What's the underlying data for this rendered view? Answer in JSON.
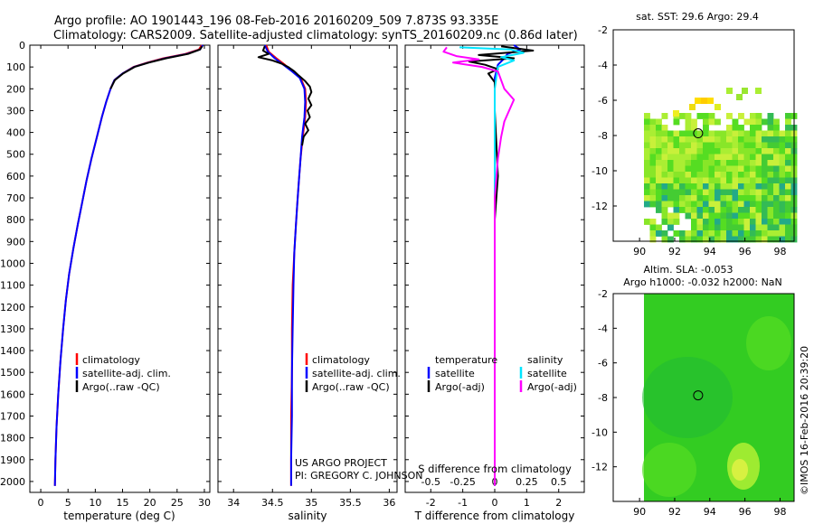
{
  "header": {
    "title_line1": "Argo profile: AO 1901443_196 08-Feb-2016 20160209_509 7.873S 93.335E",
    "title_line2": "Climatology: CARS2009. Satellite-adjusted climatology: synTS_20160209.nc (0.86d later)"
  },
  "colors": {
    "climatology": "#ff0000",
    "satellite": "#0000ff",
    "argo": "#000000",
    "salinity_satellite": "#00e5ff",
    "salinity_argo": "#ff00ff"
  },
  "chart_data": [
    {
      "type": "line",
      "panel": "temperature",
      "xlabel": "temperature (deg C)",
      "ylabel": "",
      "xlim": [
        -2,
        31
      ],
      "ylim": [
        2050,
        0
      ],
      "xticks": [
        0,
        5,
        10,
        15,
        20,
        25,
        30
      ],
      "xtick_labels": [
        "0",
        "5",
        "10",
        "15",
        "20",
        "25",
        "30"
      ],
      "yticks": [
        0,
        100,
        200,
        300,
        400,
        500,
        600,
        700,
        800,
        900,
        1000,
        1100,
        1200,
        1300,
        1400,
        1500,
        1600,
        1700,
        1800,
        1900,
        2000
      ],
      "ytick_labels": [
        "0",
        "100",
        "200",
        "300",
        "400",
        "500",
        "600",
        "700",
        "800",
        "900",
        "1000",
        "1100",
        "1200",
        "1300",
        "1400",
        "1500",
        "1600",
        "1700",
        "1800",
        "1900",
        "2000"
      ],
      "legend": [
        "climatology",
        "satellite-adj. clim.",
        "Argo(..raw -QC)"
      ],
      "series": [
        {
          "name": "climatology",
          "color": "#ff0000",
          "points": [
            [
              29.5,
              0
            ],
            [
              29.0,
              20
            ],
            [
              26.5,
              40
            ],
            [
              22.5,
              60
            ],
            [
              19.5,
              80
            ],
            [
              17.0,
              100
            ],
            [
              15.0,
              130
            ],
            [
              13.5,
              160
            ],
            [
              12.8,
              200
            ],
            [
              12.0,
              260
            ],
            [
              11.2,
              330
            ],
            [
              10.3,
              420
            ],
            [
              9.3,
              520
            ],
            [
              8.4,
              620
            ],
            [
              7.6,
              720
            ],
            [
              6.8,
              820
            ],
            [
              6.0,
              930
            ],
            [
              5.2,
              1050
            ],
            [
              4.6,
              1170
            ],
            [
              4.1,
              1300
            ],
            [
              3.6,
              1450
            ],
            [
              3.2,
              1600
            ],
            [
              2.9,
              1750
            ],
            [
              2.7,
              1900
            ],
            [
              2.6,
              2020
            ]
          ]
        },
        {
          "name": "satellite-adj. clim.",
          "color": "#0000ff",
          "points": [
            [
              29.7,
              0
            ],
            [
              29.2,
              20
            ],
            [
              26.8,
              40
            ],
            [
              22.8,
              60
            ],
            [
              19.7,
              80
            ],
            [
              17.1,
              100
            ],
            [
              15.0,
              130
            ],
            [
              13.5,
              160
            ],
            [
              12.8,
              200
            ],
            [
              12.0,
              260
            ],
            [
              11.2,
              330
            ],
            [
              10.3,
              420
            ],
            [
              9.3,
              520
            ],
            [
              8.4,
              620
            ],
            [
              7.6,
              720
            ],
            [
              6.8,
              820
            ],
            [
              6.0,
              930
            ],
            [
              5.2,
              1050
            ],
            [
              4.6,
              1170
            ],
            [
              4.1,
              1300
            ],
            [
              3.6,
              1450
            ],
            [
              3.2,
              1600
            ],
            [
              2.9,
              1750
            ],
            [
              2.7,
              1900
            ],
            [
              2.6,
              2020
            ]
          ]
        },
        {
          "name": "Argo(..raw -QC)",
          "color": "#000000",
          "points": [
            [
              29.6,
              5
            ],
            [
              29.2,
              20
            ],
            [
              27.0,
              40
            ],
            [
              23.0,
              60
            ],
            [
              19.8,
              80
            ],
            [
              17.2,
              100
            ],
            [
              15.1,
              130
            ],
            [
              13.6,
              160
            ],
            [
              12.8,
              200
            ]
          ]
        }
      ]
    },
    {
      "type": "line",
      "panel": "salinity",
      "xlabel": "salinity",
      "ylabel": "",
      "xlim": [
        33.8,
        36.1
      ],
      "ylim": [
        2050,
        0
      ],
      "xticks": [
        34,
        34.5,
        35,
        35.5,
        36
      ],
      "xtick_labels": [
        "34",
        "34.5",
        "35",
        "35.5",
        "36"
      ],
      "legend": [
        "climatology",
        "satellite-adj. clim.",
        "Argo(..raw -QC)"
      ],
      "annotations": [
        "US ARGO PROJECT",
        "PI: GREGORY C. JOHNSON"
      ],
      "series": [
        {
          "name": "climatology",
          "color": "#ff0000",
          "points": [
            [
              34.42,
              0
            ],
            [
              34.45,
              30
            ],
            [
              34.55,
              60
            ],
            [
              34.66,
              90
            ],
            [
              34.76,
              120
            ],
            [
              34.86,
              150
            ],
            [
              34.92,
              200
            ],
            [
              34.93,
              260
            ],
            [
              34.92,
              330
            ],
            [
              34.89,
              420
            ],
            [
              34.86,
              520
            ],
            [
              34.84,
              620
            ],
            [
              34.82,
              720
            ],
            [
              34.8,
              830
            ],
            [
              34.78,
              950
            ],
            [
              34.76,
              1100
            ],
            [
              34.75,
              1300
            ],
            [
              34.75,
              1500
            ],
            [
              34.74,
              1700
            ],
            [
              34.74,
              1900
            ],
            [
              34.74,
              2020
            ]
          ]
        },
        {
          "name": "satellite-adj. clim.",
          "color": "#0000ff",
          "points": [
            [
              34.4,
              0
            ],
            [
              34.44,
              30
            ],
            [
              34.53,
              60
            ],
            [
              34.64,
              90
            ],
            [
              34.75,
              120
            ],
            [
              34.85,
              150
            ],
            [
              34.91,
              200
            ],
            [
              34.92,
              260
            ],
            [
              34.91,
              330
            ],
            [
              34.88,
              420
            ],
            [
              34.86,
              520
            ],
            [
              34.84,
              620
            ],
            [
              34.82,
              720
            ],
            [
              34.8,
              830
            ],
            [
              34.78,
              950
            ],
            [
              34.77,
              1100
            ],
            [
              34.76,
              1300
            ],
            [
              34.75,
              1500
            ],
            [
              34.75,
              1700
            ],
            [
              34.74,
              1900
            ],
            [
              34.74,
              2020
            ]
          ]
        },
        {
          "name": "Argo(..raw -QC)",
          "color": "#000000",
          "points": [
            [
              34.4,
              5
            ],
            [
              34.38,
              25
            ],
            [
              34.45,
              40
            ],
            [
              34.32,
              55
            ],
            [
              34.5,
              70
            ],
            [
              34.62,
              85
            ],
            [
              34.7,
              100
            ],
            [
              34.78,
              120
            ],
            [
              34.84,
              140
            ],
            [
              34.92,
              165
            ],
            [
              34.98,
              190
            ],
            [
              35.0,
              215
            ],
            [
              34.96,
              245
            ],
            [
              35.0,
              275
            ],
            [
              34.95,
              300
            ],
            [
              34.98,
              330
            ],
            [
              34.92,
              360
            ],
            [
              34.96,
              390
            ],
            [
              34.9,
              420
            ],
            [
              34.88,
              460
            ]
          ]
        }
      ]
    },
    {
      "type": "line",
      "panel": "differences",
      "xlabel": "T difference from climatology",
      "xlabel_top": "S difference from climatology",
      "xlim": [
        -2.8,
        2.8
      ],
      "ylim": [
        2050,
        0
      ],
      "xticks": [
        -2,
        -1,
        0,
        1,
        2
      ],
      "xtick_labels": [
        "-2",
        "-1",
        "0",
        "1",
        "2"
      ],
      "s_ticks": [
        -0.5,
        -0.25,
        0,
        0.25,
        0.5
      ],
      "s_tick_labels": [
        "-0.5",
        "-0.25",
        "0",
        "0.25",
        "0.5"
      ],
      "legend_headers": [
        "temperature",
        "salinity"
      ],
      "legend": [
        "satellite",
        "Argo(-adj)",
        "satellite",
        "Argo(-adj)"
      ],
      "series": [
        {
          "name": "temperature satellite",
          "color": "#0000ff",
          "points": [
            [
              0.6,
              0
            ],
            [
              0.8,
              20
            ],
            [
              0.4,
              40
            ],
            [
              0.3,
              60
            ],
            [
              0.1,
              90
            ],
            [
              0.0,
              150
            ],
            [
              0.0,
              400
            ],
            [
              0.0,
              2020
            ]
          ]
        },
        {
          "name": "temperature Argo(-adj)",
          "color": "#000000",
          "points": [
            [
              0.2,
              5
            ],
            [
              1.2,
              25
            ],
            [
              -0.5,
              45
            ],
            [
              0.6,
              60
            ],
            [
              -0.8,
              75
            ],
            [
              -0.3,
              90
            ],
            [
              0.1,
              110
            ],
            [
              -0.2,
              130
            ],
            [
              0.0,
              170
            ],
            [
              0.0,
              300
            ],
            [
              0.1,
              600
            ],
            [
              0.0,
              800
            ],
            [
              0.0,
              1100
            ],
            [
              0.0,
              2020
            ]
          ]
        },
        {
          "name": "salinity satellite",
          "color": "#00e5ff",
          "points": [
            [
              -1.1,
              10
            ],
            [
              0.5,
              20
            ],
            [
              0.9,
              35
            ],
            [
              0.2,
              55
            ],
            [
              0.6,
              70
            ],
            [
              0.1,
              100
            ],
            [
              0.0,
              200
            ],
            [
              0.0,
              2020
            ]
          ]
        },
        {
          "name": "salinity Argo(-adj)",
          "color": "#ff00ff",
          "points": [
            [
              -1.5,
              10
            ],
            [
              -1.6,
              30
            ],
            [
              -1.2,
              50
            ],
            [
              -0.5,
              65
            ],
            [
              -1.3,
              80
            ],
            [
              -0.4,
              100
            ],
            [
              0.1,
              120
            ],
            [
              0.3,
              200
            ],
            [
              0.6,
              250
            ],
            [
              0.3,
              350
            ],
            [
              0.2,
              420
            ],
            [
              0.1,
              520
            ],
            [
              0.0,
              700
            ],
            [
              0.0,
              1300
            ],
            [
              0.0,
              2020
            ]
          ]
        }
      ]
    },
    {
      "type": "heatmap",
      "panel": "sst-map",
      "title": "sat. SST: 29.6  Argo: 29.4",
      "xlim": [
        88.5,
        98.8
      ],
      "ylim": [
        -14,
        -2
      ],
      "xticks": [
        90,
        92,
        94,
        96,
        98
      ],
      "xtick_labels": [
        "90",
        "92",
        "94",
        "96",
        "98"
      ],
      "yticks": [
        -2,
        -4,
        -6,
        -8,
        -10,
        -12
      ],
      "ytick_labels": [
        "-2",
        "-4",
        "-6",
        "-8",
        "-10",
        "-12"
      ],
      "float_position": {
        "lon": 93.335,
        "lat": -7.873
      }
    },
    {
      "type": "heatmap",
      "panel": "sla-map",
      "title_line1": "Altim. SLA: -0.053",
      "title_line2": "Argo h1000: -0.032 h2000: NaN",
      "xlim": [
        88.5,
        98.8
      ],
      "ylim": [
        -14,
        -2
      ],
      "xticks": [
        90,
        92,
        94,
        96,
        98
      ],
      "xtick_labels": [
        "90",
        "92",
        "94",
        "96",
        "98"
      ],
      "yticks": [
        -2,
        -4,
        -6,
        -8,
        -10,
        -12
      ],
      "ytick_labels": [
        "-2",
        "-4",
        "-6",
        "-8",
        "-10",
        "-12"
      ],
      "float_position": {
        "lon": 93.335,
        "lat": -7.873
      }
    }
  ],
  "footer": {
    "stamp": "©IMOS 16-Feb-2016 20:39:20"
  }
}
